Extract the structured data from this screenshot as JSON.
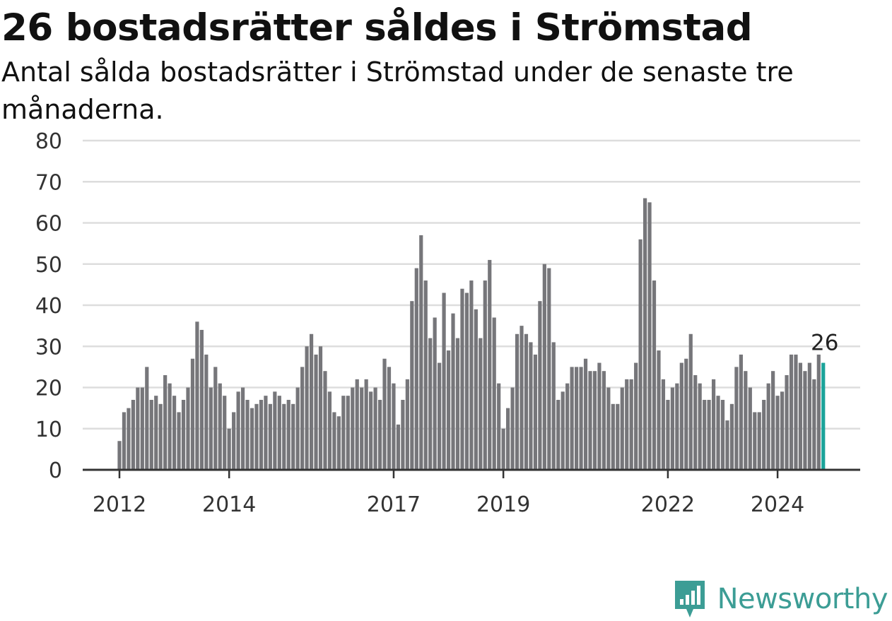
{
  "title": "26 bostadsrätter såldes i Strömstad",
  "subtitle": "Antal sålda bostadsrätter i Strömstad under de senaste tre månaderna.",
  "brand": {
    "name": "Newsworthy",
    "logo_icon": "bar-chart-speech-bubble-icon"
  },
  "colors": {
    "bar": "#76767a",
    "highlight": "#1aa39a",
    "grid": "#dddddd",
    "axis": "#333333",
    "brand": "#3c9d95"
  },
  "chart_data": {
    "type": "bar",
    "y_ticks": [
      0,
      10,
      20,
      30,
      40,
      50,
      60,
      70,
      80
    ],
    "ylim": [
      0,
      80
    ],
    "x_tick_labels": [
      {
        "label": "2012",
        "month_index": 0
      },
      {
        "label": "2014",
        "month_index": 24
      },
      {
        "label": "2017",
        "month_index": 60
      },
      {
        "label": "2019",
        "month_index": 84
      },
      {
        "label": "2022",
        "month_index": 120
      },
      {
        "label": "2024",
        "month_index": 144
      }
    ],
    "start_month": "2012-01",
    "values": [
      7,
      14,
      15,
      17,
      20,
      20,
      25,
      17,
      18,
      16,
      23,
      21,
      18,
      14,
      17,
      20,
      27,
      36,
      34,
      28,
      20,
      25,
      21,
      18,
      10,
      14,
      19,
      20,
      17,
      15,
      16,
      17,
      18,
      16,
      19,
      18,
      16,
      17,
      16,
      20,
      25,
      30,
      33,
      28,
      30,
      24,
      19,
      14,
      13,
      18,
      18,
      20,
      22,
      20,
      22,
      19,
      20,
      17,
      27,
      25,
      21,
      11,
      17,
      22,
      41,
      49,
      57,
      46,
      32,
      37,
      26,
      43,
      29,
      38,
      32,
      44,
      43,
      46,
      39,
      32,
      46,
      51,
      37,
      21,
      10,
      15,
      20,
      33,
      35,
      33,
      31,
      28,
      41,
      50,
      49,
      31,
      17,
      19,
      21,
      25,
      25,
      25,
      27,
      24,
      24,
      26,
      24,
      20,
      16,
      16,
      20,
      22,
      22,
      26,
      56,
      66,
      65,
      46,
      29,
      22,
      17,
      20,
      21,
      26,
      27,
      33,
      23,
      21,
      17,
      17,
      22,
      18,
      17,
      12,
      16,
      25,
      28,
      24,
      20,
      14,
      14,
      17,
      21,
      24,
      18,
      19,
      23,
      28,
      28,
      26,
      24,
      26,
      22,
      28,
      26
    ],
    "highlight_last": true,
    "annotation": {
      "text": "26",
      "target": "last"
    },
    "legend": "none",
    "grid": "horizontal"
  }
}
